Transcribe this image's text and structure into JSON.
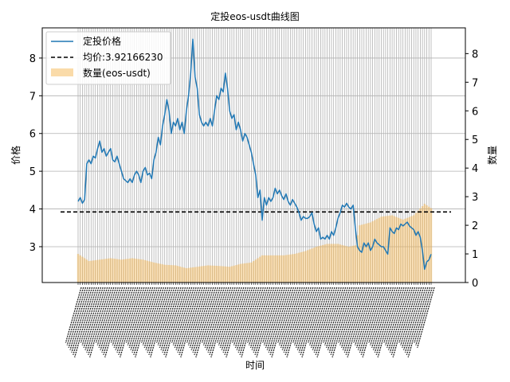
{
  "chart_data": {
    "type": "line+bar",
    "title": "定投eos-usdt曲线图",
    "xlabel": "时间",
    "ylabel_left": "价格",
    "ylabel_right": "数量",
    "ylim_left": [
      2.05,
      8.8
    ],
    "ylim_right": [
      0,
      8.9
    ],
    "yticks_left": [
      "3",
      "4",
      "5",
      "6",
      "7",
      "8"
    ],
    "yticks_right": [
      "0",
      "1",
      "2",
      "3",
      "4",
      "5",
      "6",
      "7",
      "8"
    ],
    "grid": true,
    "legend_placement": "top-left",
    "legend": {
      "line": "定投价格",
      "mean": "均价:3.92166230",
      "bars": "数量(eos-usdt)"
    },
    "mean_price": 3.9216623,
    "price_series": [
      [
        0,
        4.2
      ],
      [
        1,
        4.3
      ],
      [
        2,
        4.15
      ],
      [
        3,
        4.25
      ],
      [
        4,
        5.2
      ],
      [
        5,
        5.3
      ],
      [
        6,
        5.2
      ],
      [
        7,
        5.4
      ],
      [
        8,
        5.35
      ],
      [
        9,
        5.6
      ],
      [
        10,
        5.8
      ],
      [
        11,
        5.5
      ],
      [
        12,
        5.6
      ],
      [
        13,
        5.4
      ],
      [
        14,
        5.5
      ],
      [
        15,
        5.6
      ],
      [
        16,
        5.3
      ],
      [
        17,
        5.25
      ],
      [
        18,
        5.4
      ],
      [
        19,
        5.2
      ],
      [
        20,
        5.0
      ],
      [
        21,
        4.8
      ],
      [
        22,
        4.75
      ],
      [
        23,
        4.7
      ],
      [
        24,
        4.8
      ],
      [
        25,
        4.7
      ],
      [
        26,
        4.9
      ],
      [
        27,
        5.0
      ],
      [
        28,
        4.9
      ],
      [
        29,
        4.7
      ],
      [
        30,
        5.0
      ],
      [
        31,
        5.1
      ],
      [
        32,
        4.9
      ],
      [
        33,
        4.95
      ],
      [
        34,
        4.8
      ],
      [
        35,
        5.3
      ],
      [
        36,
        5.5
      ],
      [
        37,
        5.9
      ],
      [
        38,
        5.7
      ],
      [
        39,
        6.2
      ],
      [
        40,
        6.5
      ],
      [
        41,
        6.9
      ],
      [
        42,
        6.6
      ],
      [
        43,
        6.0
      ],
      [
        44,
        6.3
      ],
      [
        45,
        6.2
      ],
      [
        46,
        6.4
      ],
      [
        47,
        6.1
      ],
      [
        48,
        6.3
      ],
      [
        49,
        6.0
      ],
      [
        50,
        6.6
      ],
      [
        51,
        7.0
      ],
      [
        52,
        7.6
      ],
      [
        53,
        8.5
      ],
      [
        54,
        7.5
      ],
      [
        55,
        7.2
      ],
      [
        56,
        6.5
      ],
      [
        57,
        6.3
      ],
      [
        58,
        6.2
      ],
      [
        59,
        6.3
      ],
      [
        60,
        6.2
      ],
      [
        61,
        6.4
      ],
      [
        62,
        6.2
      ],
      [
        63,
        6.6
      ],
      [
        64,
        7.0
      ],
      [
        65,
        6.9
      ],
      [
        66,
        7.2
      ],
      [
        67,
        7.1
      ],
      [
        68,
        7.6
      ],
      [
        69,
        7.2
      ],
      [
        70,
        6.6
      ],
      [
        71,
        6.4
      ],
      [
        72,
        6.5
      ],
      [
        73,
        6.1
      ],
      [
        74,
        6.3
      ],
      [
        75,
        6.1
      ],
      [
        76,
        5.8
      ],
      [
        77,
        6.0
      ],
      [
        78,
        5.9
      ],
      [
        79,
        5.7
      ],
      [
        80,
        5.5
      ],
      [
        81,
        5.2
      ],
      [
        82,
        4.9
      ],
      [
        83,
        4.3
      ],
      [
        84,
        4.5
      ],
      [
        85,
        3.7
      ],
      [
        86,
        4.3
      ],
      [
        87,
        4.1
      ],
      [
        88,
        4.3
      ],
      [
        89,
        4.2
      ],
      [
        90,
        4.3
      ],
      [
        91,
        4.55
      ],
      [
        92,
        4.4
      ],
      [
        93,
        4.5
      ],
      [
        94,
        4.35
      ],
      [
        95,
        4.25
      ],
      [
        96,
        4.4
      ],
      [
        97,
        4.2
      ],
      [
        98,
        4.1
      ],
      [
        99,
        4.25
      ],
      [
        100,
        4.15
      ],
      [
        101,
        4.05
      ],
      [
        102,
        3.9
      ],
      [
        103,
        3.7
      ],
      [
        104,
        3.8
      ],
      [
        105,
        3.75
      ],
      [
        106,
        3.75
      ],
      [
        107,
        3.8
      ],
      [
        108,
        3.9
      ],
      [
        109,
        3.6
      ],
      [
        110,
        3.4
      ],
      [
        111,
        3.5
      ],
      [
        112,
        3.2
      ],
      [
        113,
        3.25
      ],
      [
        114,
        3.2
      ],
      [
        115,
        3.3
      ],
      [
        116,
        3.2
      ],
      [
        117,
        3.4
      ],
      [
        118,
        3.3
      ],
      [
        119,
        3.5
      ],
      [
        120,
        3.75
      ],
      [
        121,
        3.9
      ],
      [
        122,
        4.1
      ],
      [
        123,
        4.05
      ],
      [
        124,
        4.15
      ],
      [
        125,
        4.05
      ],
      [
        126,
        4.0
      ],
      [
        127,
        4.1
      ],
      [
        128,
        3.5
      ],
      [
        129,
        3.0
      ],
      [
        130,
        2.9
      ],
      [
        131,
        2.85
      ],
      [
        132,
        3.1
      ],
      [
        133,
        3.0
      ],
      [
        134,
        3.1
      ],
      [
        135,
        2.9
      ],
      [
        136,
        3.0
      ],
      [
        137,
        3.2
      ],
      [
        138,
        3.1
      ],
      [
        139,
        3.05
      ],
      [
        140,
        3.0
      ],
      [
        141,
        3.0
      ],
      [
        142,
        2.9
      ],
      [
        143,
        2.8
      ],
      [
        144,
        3.5
      ],
      [
        145,
        3.4
      ],
      [
        146,
        3.35
      ],
      [
        147,
        3.5
      ],
      [
        148,
        3.45
      ],
      [
        149,
        3.6
      ],
      [
        150,
        3.55
      ],
      [
        151,
        3.6
      ],
      [
        152,
        3.65
      ],
      [
        153,
        3.55
      ],
      [
        154,
        3.5
      ],
      [
        155,
        3.45
      ],
      [
        156,
        3.3
      ],
      [
        157,
        3.4
      ],
      [
        158,
        3.25
      ],
      [
        159,
        2.9
      ],
      [
        160,
        2.4
      ],
      [
        161,
        2.6
      ],
      [
        162,
        2.65
      ],
      [
        163,
        2.8
      ]
    ],
    "quantity_series": [
      [
        0,
        1.0
      ],
      [
        5,
        0.75
      ],
      [
        10,
        0.8
      ],
      [
        15,
        0.85
      ],
      [
        20,
        0.8
      ],
      [
        25,
        0.85
      ],
      [
        30,
        0.8
      ],
      [
        35,
        0.7
      ],
      [
        40,
        0.62
      ],
      [
        45,
        0.6
      ],
      [
        50,
        0.5
      ],
      [
        55,
        0.55
      ],
      [
        60,
        0.6
      ],
      [
        65,
        0.58
      ],
      [
        70,
        0.55
      ],
      [
        75,
        0.65
      ],
      [
        80,
        0.7
      ],
      [
        85,
        0.95
      ],
      [
        90,
        0.95
      ],
      [
        95,
        0.95
      ],
      [
        100,
        1.0
      ],
      [
        105,
        1.1
      ],
      [
        110,
        1.25
      ],
      [
        115,
        1.35
      ],
      [
        120,
        1.35
      ],
      [
        125,
        1.25
      ],
      [
        128,
        1.3
      ],
      [
        130,
        2.0
      ],
      [
        135,
        2.1
      ],
      [
        140,
        2.3
      ],
      [
        145,
        2.35
      ],
      [
        150,
        2.2
      ],
      [
        155,
        2.35
      ],
      [
        160,
        2.75
      ],
      [
        163,
        2.6
      ]
    ]
  }
}
